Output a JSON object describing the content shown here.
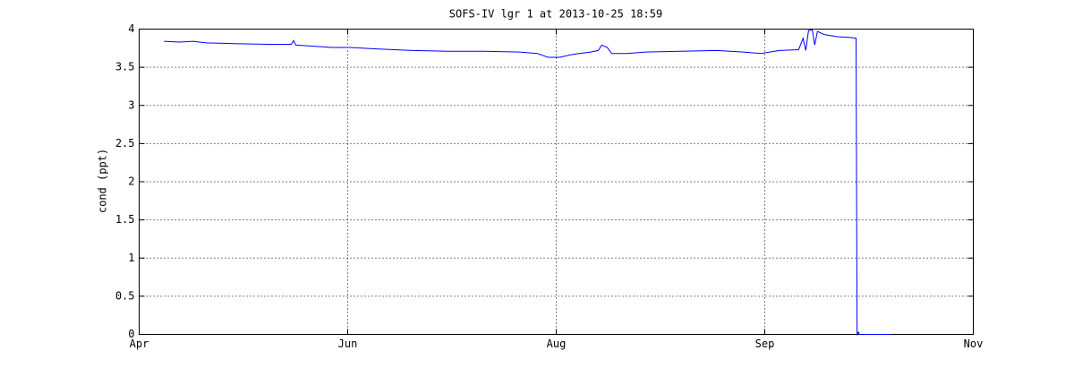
{
  "chart_data": {
    "type": "line",
    "title": "SOFS-IV lgr 1 at 2013-10-25 18:59",
    "y_label": "cond (ppt)",
    "x": [
      7.3,
      11.8,
      15.7,
      19.6,
      27.5,
      38,
      44.5,
      45.2,
      45.8,
      49.7,
      56.3,
      61.5,
      69.4,
      79.8,
      90.3,
      100.8,
      111.3,
      116.5,
      119.6,
      123,
      127,
      132,
      134.3,
      135.3,
      136.9,
      138.2,
      142.7,
      148,
      158.4,
      168.8,
      176.7,
      181.9,
      187.2,
      192.9,
      194.2,
      195,
      195.8,
      196.9,
      197.6,
      198.4,
      200.3,
      204.2,
      208.1,
      209.7,
      210,
      210.4,
      210.7,
      220
    ],
    "values": [
      3.84,
      3.83,
      3.84,
      3.82,
      3.81,
      3.8,
      3.8,
      3.85,
      3.79,
      3.78,
      3.76,
      3.76,
      3.74,
      3.72,
      3.71,
      3.71,
      3.7,
      3.68,
      3.63,
      3.63,
      3.67,
      3.7,
      3.72,
      3.79,
      3.76,
      3.68,
      3.68,
      3.7,
      3.71,
      3.72,
      3.7,
      3.68,
      3.72,
      3.73,
      3.88,
      3.72,
      3.98,
      3.99,
      3.79,
      3.97,
      3.93,
      3.9,
      3.89,
      3.88,
      0,
      0.03,
      0,
      0
    ],
    "color": "#0000ff",
    "xlim": [
      0,
      244
    ],
    "xticks": [
      {
        "value": 0,
        "label": "Apr"
      },
      {
        "value": 61,
        "label": "Jun"
      },
      {
        "value": 122,
        "label": "Aug"
      },
      {
        "value": 183,
        "label": "Sep"
      },
      {
        "value": 244,
        "label": "Nov"
      }
    ],
    "ylim": [
      0,
      4
    ],
    "yticks": [
      0,
      0.5,
      1,
      1.5,
      2,
      2.5,
      3,
      3.5,
      4
    ],
    "grid": true
  }
}
